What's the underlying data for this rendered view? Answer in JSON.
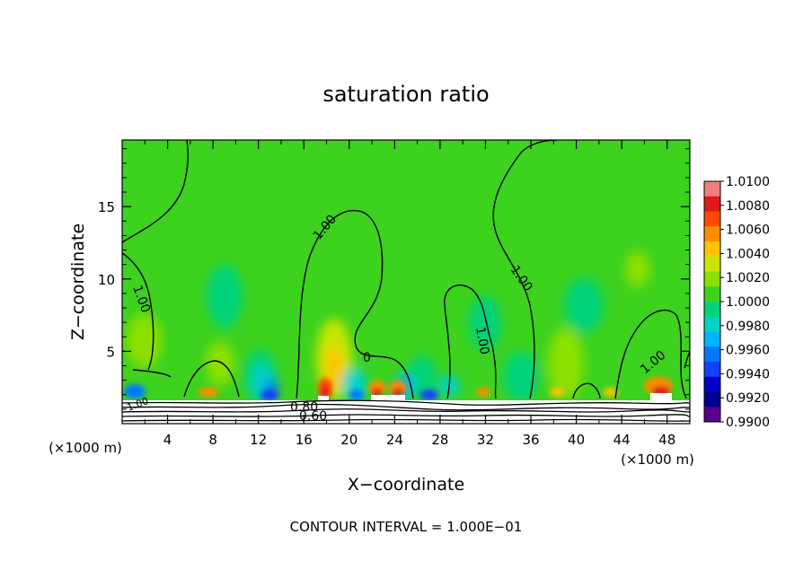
{
  "chart_data": {
    "type": "heatmap",
    "title": "saturation ratio",
    "xlabel": "X−coordinate",
    "ylabel": "Z−coordinate",
    "x_units": "(×1000 m)",
    "z_units": "(×1000 m)",
    "xlim": [
      0,
      50
    ],
    "ylim": [
      0,
      19.6
    ],
    "xticks": [
      4,
      8,
      12,
      16,
      20,
      24,
      28,
      32,
      36,
      40,
      44,
      48
    ],
    "yticks": [
      5,
      10,
      15
    ],
    "grid": false,
    "footer": "CONTOUR INTERVAL = 1.000E−01",
    "colorbar": {
      "min": 0.99,
      "max": 1.01,
      "labels": [
        "1.0100",
        "1.0080",
        "1.0060",
        "1.0040",
        "1.0020",
        "1.0000",
        "0.9980",
        "0.9960",
        "0.9940",
        "0.9920",
        "0.9900"
      ],
      "colors": [
        "#f08080",
        "#e01a1a",
        "#ff4a00",
        "#ff8c00",
        "#ffc400",
        "#c8e600",
        "#8ce000",
        "#3cd21e",
        "#00d27a",
        "#00d2c8",
        "#00b4ff",
        "#0078ff",
        "#1440ff",
        "#0000c8",
        "#00008c",
        "#5a008c"
      ]
    },
    "contour_labels": [
      "1.00",
      "1.00",
      "1.00",
      "1.00",
      "1.00",
      "1.00",
      "0",
      "0.80",
      "0.60"
    ],
    "background_value": 1.0
  }
}
